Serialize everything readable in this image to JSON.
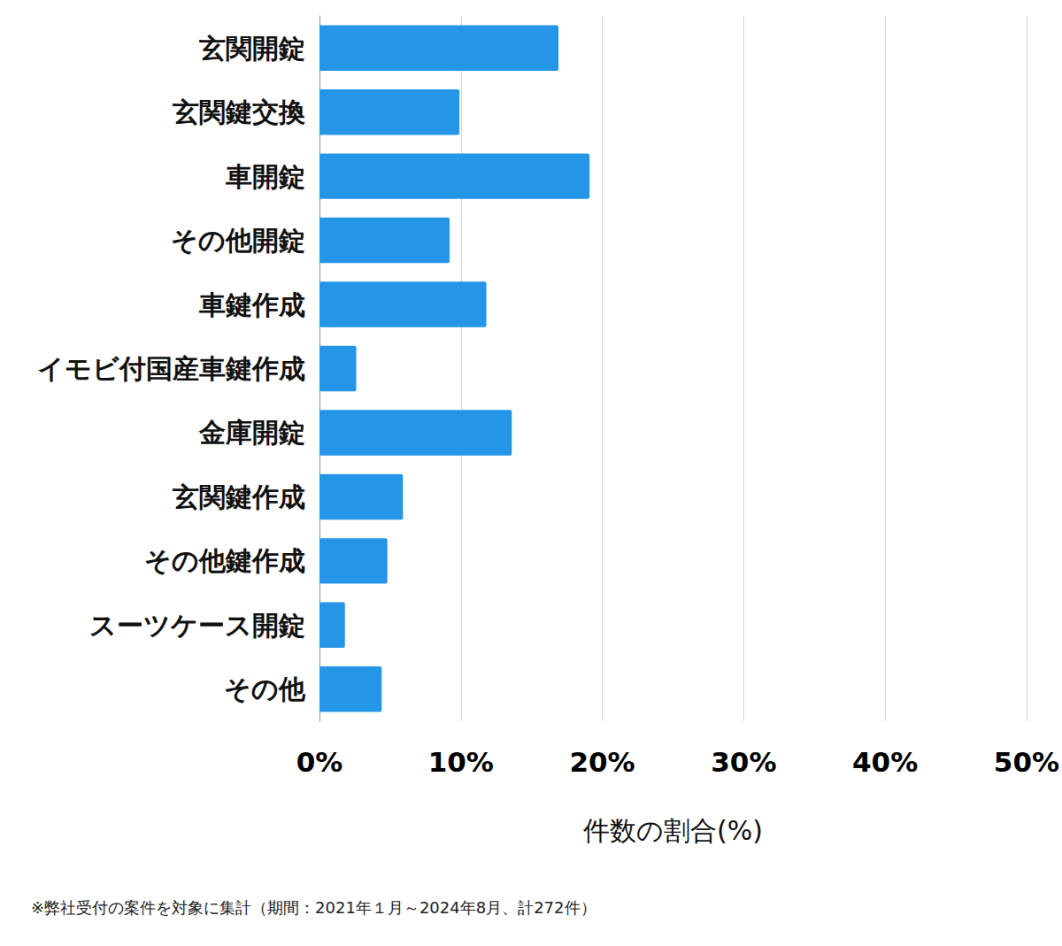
{
  "chart_data": {
    "type": "bar",
    "orientation": "horizontal",
    "categories": [
      "玄関開錠",
      "玄関鍵交換",
      "車開錠",
      "その他開錠",
      "車鍵作成",
      "イモビ付国産車鍵作成",
      "金庫開錠",
      "玄関鍵作成",
      "その他鍵作成",
      "スーツケース開錠",
      "その他"
    ],
    "values": [
      16.9,
      9.9,
      19.1,
      9.2,
      11.8,
      2.6,
      13.6,
      5.9,
      4.8,
      1.8,
      4.4
    ],
    "color": "#2595e8",
    "x_label": "件数の割合(%)",
    "xlim": [
      0,
      50
    ],
    "xticks": [
      {
        "value": 0,
        "label": "0%"
      },
      {
        "value": 10,
        "label": "10%"
      },
      {
        "value": 20,
        "label": "20%"
      },
      {
        "value": 30,
        "label": "30%"
      },
      {
        "value": 40,
        "label": "40%"
      },
      {
        "value": 50,
        "label": "50%"
      }
    ],
    "grid": true,
    "annotations": [
      "※弊社受付の案件を対象に集計（期間：2021年１月～2024年8月、計272件）"
    ]
  }
}
